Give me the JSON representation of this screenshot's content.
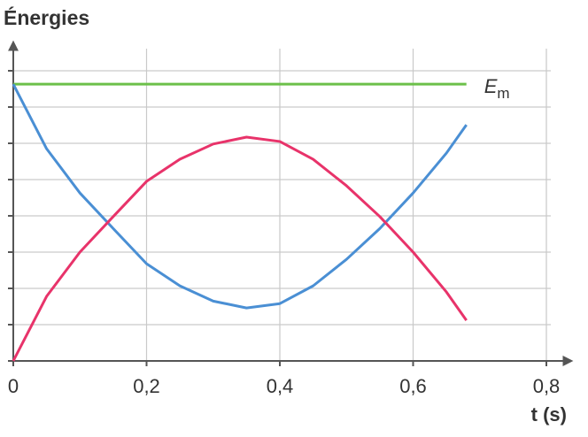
{
  "chart_data": {
    "type": "line",
    "title": "Énergies",
    "x_label": "t (s)",
    "x": [
      0,
      0.05,
      0.1,
      0.15,
      0.2,
      0.25,
      0.3,
      0.35,
      0.4,
      0.45,
      0.5,
      0.55,
      0.6,
      0.65,
      0.68
    ],
    "series": [
      {
        "name": "Em",
        "color": "#6cc04a",
        "values": [
          7.63,
          7.63,
          7.63,
          7.63,
          7.63,
          7.63,
          7.63,
          7.63,
          7.63,
          7.63,
          7.63,
          7.63,
          7.63,
          7.63,
          7.63
        ]
      },
      {
        "color": "#4a8fd4",
        "values": [
          7.63,
          5.85,
          4.63,
          3.65,
          2.68,
          2.07,
          1.65,
          1.46,
          1.58,
          2.07,
          2.8,
          3.65,
          4.63,
          5.73,
          6.51
        ]
      },
      {
        "color": "#e8336a",
        "values": [
          0,
          1.78,
          3.0,
          3.98,
          4.95,
          5.56,
          5.98,
          6.17,
          6.05,
          5.56,
          4.83,
          3.98,
          3.0,
          1.9,
          1.12
        ]
      }
    ],
    "xlim": [
      0,
      0.8
    ],
    "xticks": [
      0,
      {
        "value": 0.2,
        "label": "0,2"
      },
      {
        "value": 0.4,
        "label": "0,4"
      },
      {
        "value": 0.6,
        "label": "0,6"
      },
      {
        "value": 0.8,
        "label": "0,8"
      }
    ],
    "ylim": [
      0,
      8
    ],
    "yticks": [
      0,
      1,
      2,
      3,
      4,
      5,
      6,
      7,
      8
    ],
    "yticklabels": false,
    "grid": true
  }
}
